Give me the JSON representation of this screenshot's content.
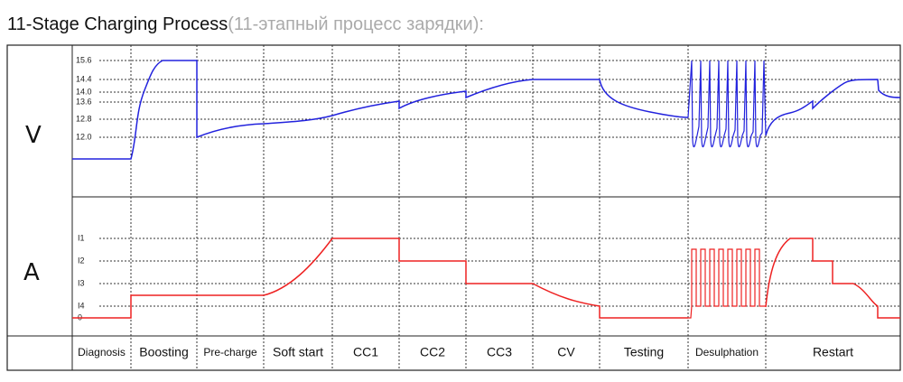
{
  "header": {
    "title": "11-Stage Charging Process",
    "subtitle": "(11-этапный процесс зарядки):"
  },
  "voltage": {
    "label": "V",
    "ticks": [
      "15.6",
      "14.4",
      "14.0",
      "13.6",
      "12.8",
      "12.0"
    ]
  },
  "current": {
    "label": "A",
    "ticks": [
      "I1",
      "I2",
      "I3",
      "I4",
      "0"
    ]
  },
  "stages": [
    "Diagnosis",
    "Boosting",
    "Pre-charge",
    "Soft start",
    "CC1",
    "CC2",
    "CC3",
    "CV",
    "Testing",
    "Desulphation",
    "Restart"
  ]
}
